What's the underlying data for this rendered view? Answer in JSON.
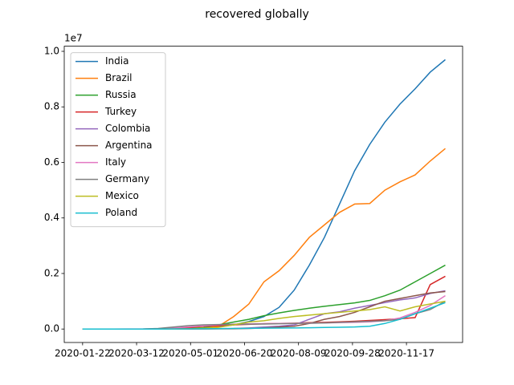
{
  "chart_data": {
    "type": "line",
    "title": "recovered globally",
    "y_offset_label": "1e7",
    "legend": "upper left",
    "x": [
      "2020-01-22",
      "2020-02-05",
      "2020-02-19",
      "2020-03-04",
      "2020-03-18",
      "2020-04-01",
      "2020-04-15",
      "2020-04-29",
      "2020-05-13",
      "2020-05-27",
      "2020-06-10",
      "2020-06-24",
      "2020-07-08",
      "2020-07-22",
      "2020-08-05",
      "2020-08-19",
      "2020-09-02",
      "2020-09-16",
      "2020-09-30",
      "2020-10-14",
      "2020-10-28",
      "2020-11-11",
      "2020-11-25",
      "2020-12-09",
      "2020-12-23"
    ],
    "xlim": [
      "2020-01-05",
      "2021-01-08"
    ],
    "xticks": [
      "2020-01-22",
      "2020-03-12",
      "2020-05-01",
      "2020-06-20",
      "2020-08-09",
      "2020-09-28",
      "2020-11-17"
    ],
    "ylim": [
      -485000,
      10185000
    ],
    "yticks": [
      {
        "value": 0,
        "label": "0.0"
      },
      {
        "value": 2000000,
        "label": "0.2"
      },
      {
        "value": 4000000,
        "label": "0.4"
      },
      {
        "value": 6000000,
        "label": "0.6"
      },
      {
        "value": 8000000,
        "label": "0.8"
      },
      {
        "value": 10000000,
        "label": "1.0"
      }
    ],
    "series": [
      {
        "name": "India",
        "color": "#1f77b4",
        "values": [
          0,
          0,
          3,
          3,
          10,
          100,
          1000,
          2000,
          26000,
          80000,
          150000,
          270000,
          450000,
          780000,
          1400000,
          2300000,
          3300000,
          4500000,
          5700000,
          6650000,
          7450000,
          8100000,
          8650000,
          9250000,
          9700000
        ]
      },
      {
        "name": "Brazil",
        "color": "#ff7f0e",
        "values": [
          0,
          0,
          0,
          0,
          0,
          1000,
          10000,
          30000,
          50000,
          100000,
          450000,
          900000,
          1700000,
          2100000,
          2650000,
          3300000,
          3750000,
          4200000,
          4500000,
          4520000,
          5000000,
          5300000,
          5550000,
          6050000,
          6500000
        ]
      },
      {
        "name": "Russia",
        "color": "#2ca02c",
        "values": [
          0,
          0,
          0,
          0,
          0,
          1000,
          5000,
          20000,
          50000,
          150000,
          250000,
          350000,
          480000,
          580000,
          670000,
          750000,
          820000,
          880000,
          940000,
          1030000,
          1200000,
          1400000,
          1700000,
          2000000,
          2300000
        ]
      },
      {
        "name": "Turkey",
        "color": "#d62728",
        "values": [
          0,
          0,
          0,
          0,
          0,
          1000,
          10000,
          50000,
          100000,
          120000,
          150000,
          170000,
          190000,
          200000,
          210000,
          230000,
          240000,
          260000,
          280000,
          310000,
          340000,
          370000,
          410000,
          1600000,
          1900000
        ]
      },
      {
        "name": "Colombia",
        "color": "#9467bd",
        "values": [
          0,
          0,
          0,
          0,
          0,
          0,
          1000,
          3000,
          8000,
          12000,
          20000,
          40000,
          70000,
          100000,
          150000,
          350000,
          550000,
          620000,
          750000,
          850000,
          950000,
          1050000,
          1120000,
          1280000,
          1380000
        ]
      },
      {
        "name": "Argentina",
        "color": "#8c564b",
        "values": [
          0,
          0,
          0,
          0,
          0,
          0,
          1000,
          2000,
          3000,
          5000,
          10000,
          20000,
          40000,
          70000,
          100000,
          200000,
          350000,
          450000,
          600000,
          800000,
          1000000,
          1100000,
          1200000,
          1300000,
          1350000
        ]
      },
      {
        "name": "Italy",
        "color": "#e377c2",
        "values": [
          0,
          0,
          0,
          2000,
          4000,
          15000,
          40000,
          75000,
          115000,
          150000,
          175000,
          188000,
          195000,
          200000,
          205000,
          210000,
          220000,
          230000,
          240000,
          260000,
          300000,
          400000,
          600000,
          850000,
          1200000
        ]
      },
      {
        "name": "Germany",
        "color": "#7f7f7f",
        "values": [
          0,
          0,
          0,
          0,
          3000,
          20000,
          70000,
          120000,
          150000,
          160000,
          170000,
          175000,
          180000,
          190000,
          200000,
          210000,
          220000,
          240000,
          260000,
          280000,
          300000,
          350000,
          550000,
          700000,
          1000000
        ]
      },
      {
        "name": "Mexico",
        "color": "#bcbd22",
        "values": [
          0,
          0,
          0,
          0,
          0,
          0,
          2000,
          10000,
          30000,
          60000,
          150000,
          250000,
          300000,
          380000,
          450000,
          500000,
          550000,
          600000,
          650000,
          700000,
          800000,
          650000,
          800000,
          900000,
          1000000
        ]
      },
      {
        "name": "Poland",
        "color": "#17becf",
        "values": [
          0,
          0,
          0,
          0,
          0,
          0,
          1000,
          5000,
          10000,
          15000,
          20000,
          25000,
          30000,
          35000,
          40000,
          45000,
          55000,
          65000,
          75000,
          100000,
          200000,
          350000,
          550000,
          750000,
          950000
        ]
      }
    ]
  }
}
